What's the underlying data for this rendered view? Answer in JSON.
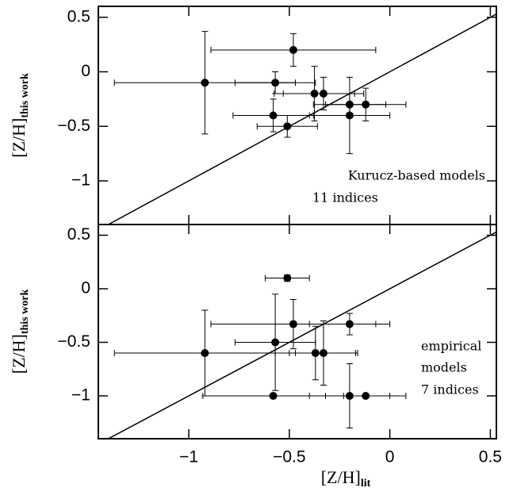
{
  "chart_data": [
    {
      "type": "scatter",
      "xlim": [
        -1.45,
        0.53
      ],
      "ylim": [
        -1.4,
        0.6
      ],
      "xticks": [
        -1,
        -0.5,
        0,
        0.5
      ],
      "yticks": [
        0.5,
        0,
        {
          "value": -0.5,
          "label": "−0.5"
        },
        {
          "value": -1,
          "label": "−1"
        }
      ],
      "y_label": "[Z/H]",
      "y_label_sub": "this work",
      "identity_line": true,
      "color": "#000000",
      "annotations": [
        "Kurucz-based models",
        "11 indices"
      ],
      "series": [
        {
          "name": "Kurucz-based models",
          "x": [
            -0.92,
            -0.57,
            -0.48,
            -0.375,
            -0.33,
            -0.2,
            -0.12,
            -0.58,
            -0.51,
            -0.2
          ],
          "values": [
            -0.1,
            -0.1,
            0.2,
            -0.2,
            -0.2,
            -0.3,
            -0.3,
            -0.4,
            -0.5,
            -0.4
          ],
          "xerr": [
            0.45,
            0.2,
            0.41,
            0.2,
            0.2,
            0.18,
            0.2,
            0.2,
            0.15,
            0.2
          ],
          "yerr": [
            0.47,
            0.1,
            0.15,
            0.25,
            0.15,
            0.1,
            0.15,
            0.15,
            0.1,
            0.35
          ]
        }
      ]
    },
    {
      "type": "scatter",
      "xlim": [
        -1.45,
        0.53
      ],
      "ylim": [
        -1.4,
        0.6
      ],
      "xticks": [
        {
          "value": -1,
          "label": "−1"
        },
        {
          "value": -0.5,
          "label": "−0.5"
        },
        0,
        0.5
      ],
      "yticks": [
        0.5,
        0,
        {
          "value": -0.5,
          "label": "−0.5"
        },
        {
          "value": -1,
          "label": "−1"
        }
      ],
      "x_label": "[Z/H]",
      "x_label_sub": "lit",
      "y_label": "[Z/H]",
      "y_label_sub": "this work",
      "identity_line": true,
      "color": "#000000",
      "annotations": [
        "empirical",
        "models",
        "7 indices"
      ],
      "series": [
        {
          "name": "empirical models",
          "x": [
            -0.92,
            -0.51,
            -0.48,
            -0.57,
            -0.37,
            -0.33,
            -0.2,
            -0.58,
            -0.2,
            -0.12
          ],
          "values": [
            -0.6,
            0.1,
            -0.33,
            -0.5,
            -0.6,
            -0.6,
            -0.33,
            -1,
            -1,
            -1
          ],
          "xerr": [
            0.45,
            0.11,
            0.41,
            0.2,
            0.2,
            0.17,
            0.2,
            0.35,
            0.2,
            0.2
          ],
          "yerr": [
            0.4,
            0.03,
            0.23,
            0.45,
            0.25,
            0.3,
            0.1,
            0,
            0.3,
            0
          ]
        }
      ]
    }
  ]
}
